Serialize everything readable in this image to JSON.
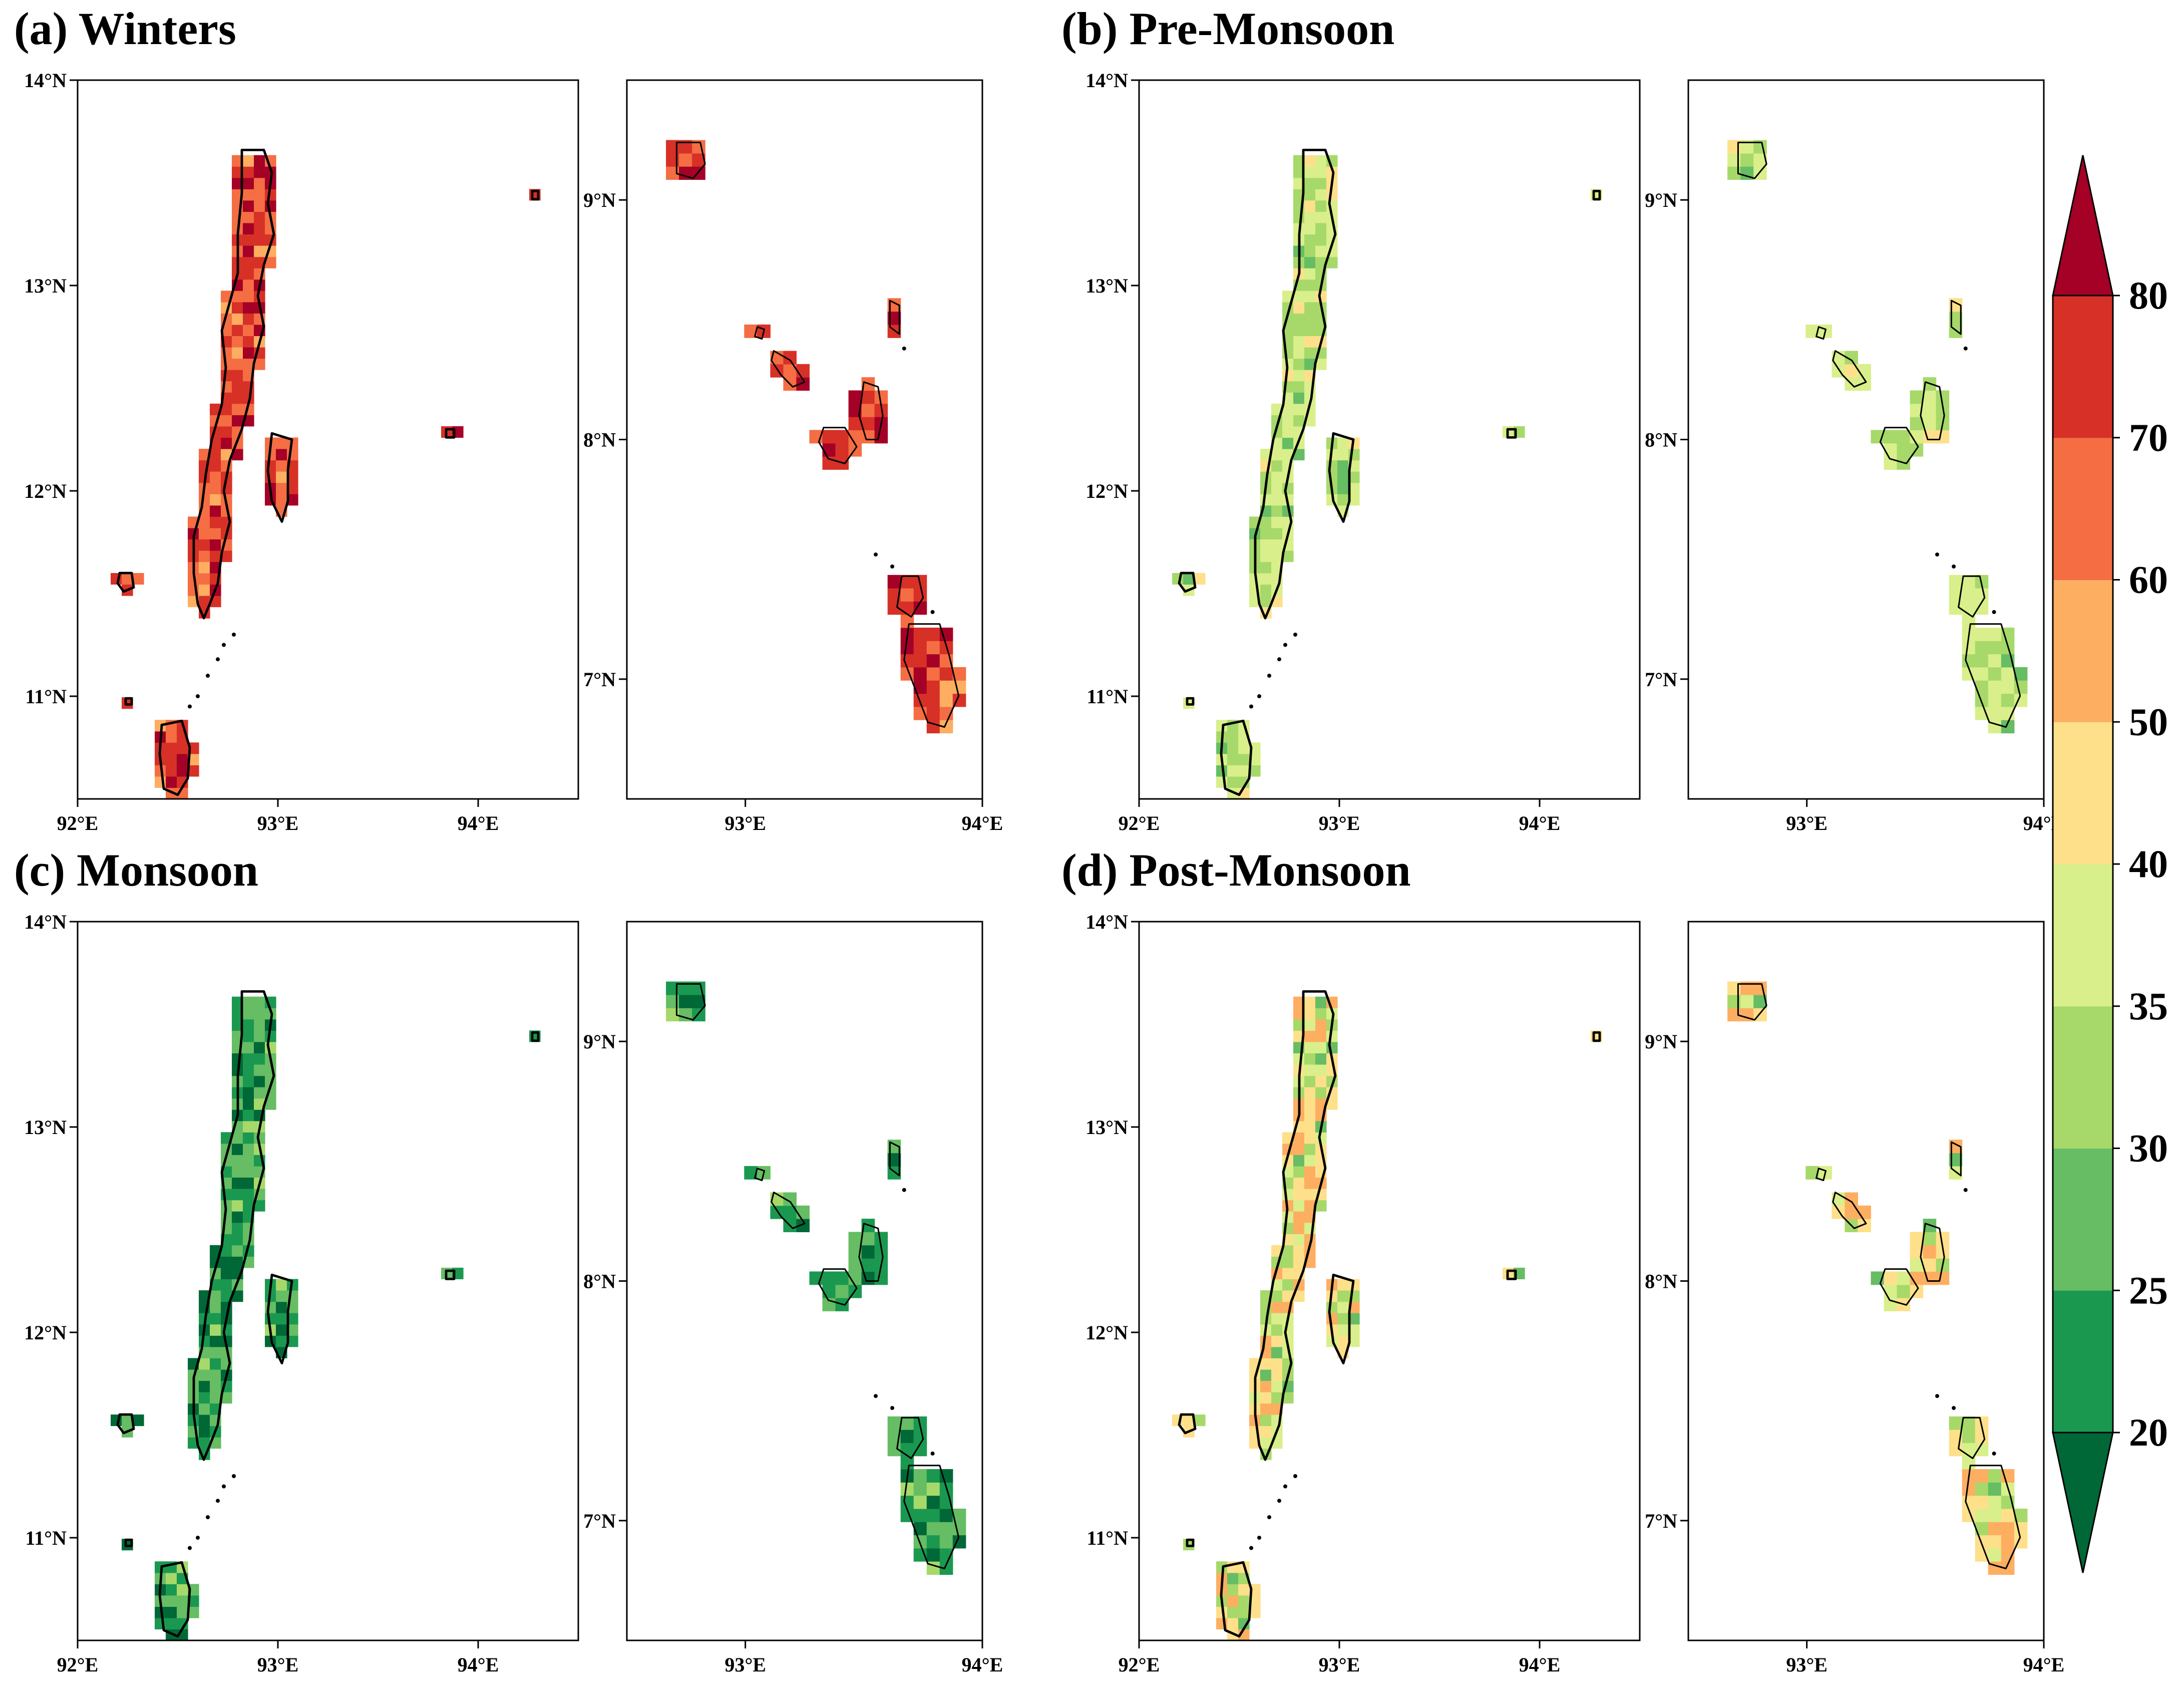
{
  "panels": [
    {
      "key": "a",
      "title": "(a) Winters",
      "season_level": 72,
      "variation": 14
    },
    {
      "key": "b",
      "title": "(b) Pre-Monsoon",
      "season_level": 35,
      "variation": 6
    },
    {
      "key": "c",
      "title": "(c) Monsoon",
      "season_level": 24,
      "variation": 7
    },
    {
      "key": "d",
      "title": "(d) Post-Monsoon",
      "season_level": 42,
      "variation": 14
    }
  ],
  "maps": {
    "andaman": {
      "lon_range": [
        92.0,
        94.5
      ],
      "lat_range": [
        10.5,
        14.0
      ],
      "x_ticks": [
        {
          "value": 92,
          "label": "92°E"
        },
        {
          "value": 93,
          "label": "93°E"
        },
        {
          "value": 94,
          "label": "94°E"
        }
      ],
      "y_ticks": [
        {
          "value": 11,
          "label": "11°N"
        },
        {
          "value": 12,
          "label": "12°N"
        },
        {
          "value": 13,
          "label": "13°N"
        },
        {
          "value": 14,
          "label": "14°N"
        }
      ]
    },
    "nicobar": {
      "lon_range": [
        92.5,
        94.0
      ],
      "lat_range": [
        6.5,
        9.5
      ],
      "x_ticks": [
        {
          "value": 93,
          "label": "93°E"
        },
        {
          "value": 94,
          "label": "94°E"
        }
      ],
      "y_ticks": [
        {
          "value": 7,
          "label": "7°N"
        },
        {
          "value": 8,
          "label": "8°N"
        },
        {
          "value": 9,
          "label": "9°N"
        }
      ]
    }
  },
  "colorbar": {
    "levels": [
      20,
      25,
      30,
      35,
      40,
      50,
      60,
      70,
      80
    ],
    "labels": [
      "20",
      "25",
      "30",
      "35",
      "40",
      "50",
      "60",
      "70",
      "80"
    ],
    "colors": [
      "#006837",
      "#1a9850",
      "#66bd63",
      "#a6d96a",
      "#d9ef8b",
      "#fee08b",
      "#fdae61",
      "#f46d43",
      "#d73027",
      "#a50026"
    ],
    "extend": "both"
  }
}
